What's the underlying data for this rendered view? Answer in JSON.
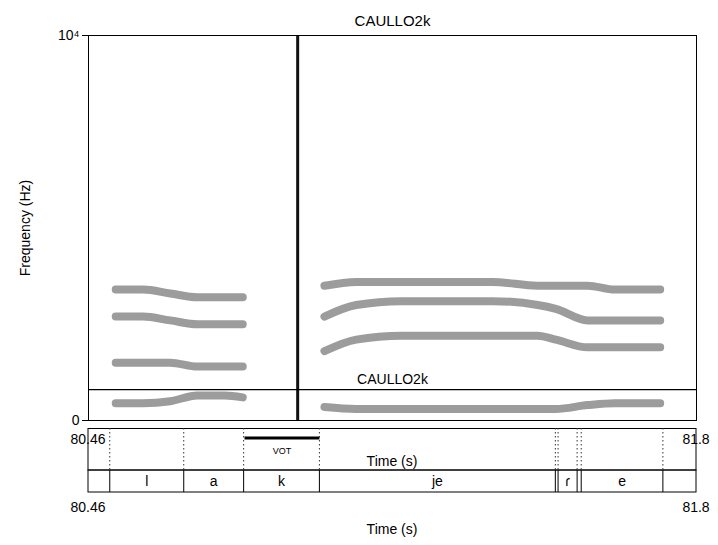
{
  "chart_data": {
    "type": "spectrogram",
    "title": "CAULLO2k",
    "xlabel": "Time (s)",
    "ylabel": "Frequency (Hz)",
    "xlim": [
      80.46,
      81.8
    ],
    "xticks": [
      80.46,
      81.8
    ],
    "ylim": [
      0,
      10000
    ],
    "yticks": [
      0,
      {
        "value": 10000,
        "label": "10⁴"
      }
    ],
    "x": [
      80.52,
      80.58,
      80.64,
      80.7,
      80.76,
      80.8,
      80.86,
      80.93,
      80.98,
      81.05,
      81.15,
      81.25,
      81.35,
      81.45,
      81.49,
      81.56,
      81.62,
      81.68,
      81.72
    ],
    "series": [
      {
        "values": [
          450,
          450,
          500,
          650,
          650,
          600,
          null,
          null,
          350,
          300,
          300,
          300,
          300,
          300,
          300,
          400,
          450,
          450,
          450
        ]
      },
      {
        "values": [
          1500,
          1500,
          1500,
          1400,
          1400,
          1400,
          null,
          null,
          1800,
          2100,
          2200,
          2200,
          2200,
          2200,
          2100,
          1900,
          1900,
          1900,
          1900
        ]
      },
      {
        "values": [
          2700,
          2700,
          2600,
          2500,
          2500,
          2500,
          null,
          null,
          2700,
          3000,
          3100,
          3100,
          3100,
          3000,
          2900,
          2600,
          2600,
          2600,
          2600
        ]
      },
      {
        "values": [
          3400,
          3400,
          3300,
          3200,
          3200,
          3200,
          null,
          null,
          3500,
          3600,
          3600,
          3600,
          3600,
          3500,
          3500,
          3500,
          3400,
          3400,
          3400
        ]
      }
    ],
    "burst": 80.921,
    "overlay": {
      "label": "CAULLO2k",
      "y": 800
    },
    "vot": {
      "label": "VOT",
      "start": 80.805,
      "end": 80.97
    },
    "segments": [
      {
        "start": 80.46,
        "end": 80.508,
        "label": null
      },
      {
        "start": 80.508,
        "end": 80.671,
        "label": "l"
      },
      {
        "start": 80.671,
        "end": 80.803,
        "label": "a"
      },
      {
        "start": 80.803,
        "end": 80.97,
        "label": "k"
      },
      {
        "start": 80.97,
        "end": 81.49,
        "label": "je"
      },
      {
        "start": 81.49,
        "end": 81.496,
        "label": null
      },
      {
        "start": 81.496,
        "end": 81.538,
        "label": "ɾ"
      },
      {
        "start": 81.538,
        "end": 81.547,
        "label": null
      },
      {
        "start": 81.547,
        "end": 81.727,
        "label": "e"
      },
      {
        "start": 81.727,
        "end": 81.8,
        "label": null
      }
    ]
  }
}
